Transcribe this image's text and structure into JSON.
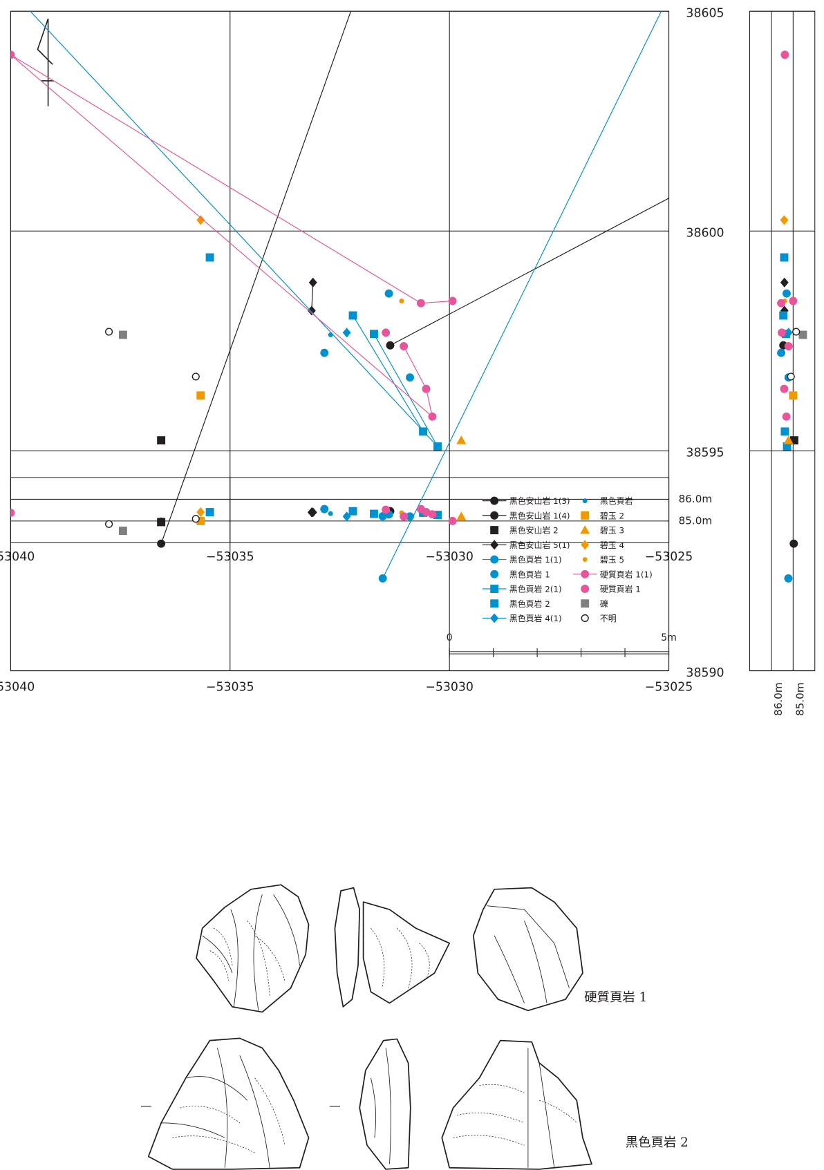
{
  "chart_data": {
    "type": "scatter",
    "grid": true,
    "legend": "lower right",
    "xlim": [
      -53040,
      -53025
    ],
    "xticks": [
      {
        "value": -53040,
        "label": "−53040"
      },
      {
        "value": -53035,
        "label": "−53035"
      },
      {
        "value": -53030,
        "label": "−53030"
      },
      {
        "value": -53025,
        "label": "−53025"
      }
    ],
    "ylim": [
      38590,
      38605
    ],
    "yticks": [
      38590,
      38595,
      38600,
      38605
    ],
    "zlim": [
      84,
      87
    ],
    "zticks": [
      {
        "value": 85,
        "label": "85.0m"
      },
      {
        "value": 86,
        "label": "86.0m"
      }
    ],
    "scale_bar": {
      "start_label": "0",
      "end_label": "5m"
    },
    "series": [
      {
        "name": "黒色安山岩 1(3)",
        "color": "#231f20",
        "marker": "circle",
        "line": true,
        "x": [
          -53036.57,
          -53031.89
        ],
        "values": [
          38592.89,
          38606
        ],
        "z": [
          84.97,
          null
        ]
      },
      {
        "name": "黒色安山岩 1(4)",
        "color": "#231f20",
        "marker": "circle",
        "line": true,
        "x": [
          -53031.35,
          -53024.5
        ],
        "values": [
          38597.4,
          38601.01
        ],
        "z": [
          85.45,
          null
        ]
      },
      {
        "name": "黒色安山岩 2",
        "color": "#231f20",
        "marker": "square",
        "line": false,
        "x": [
          -53036.57
        ],
        "values": [
          38595.24
        ],
        "z": [
          84.95
        ]
      },
      {
        "name": "黒色安山岩 5(1)",
        "color": "#231f20",
        "marker": "diamond",
        "line": true,
        "x": [
          -53033.11,
          -53033.14
        ],
        "values": [
          38598.83,
          38598.19
        ],
        "z": [
          85.4,
          85.4
        ]
      },
      {
        "name": "黒色頁岩 1(1)",
        "color": "#0091d0",
        "marker": "circle",
        "line": true,
        "x": [
          -53031.52,
          -53024.68
        ],
        "values": [
          38592.1,
          38606
        ],
        "z": [
          85.22,
          null
        ]
      },
      {
        "name": "黒色頁岩 1",
        "color": "#0091d0",
        "marker": "circle",
        "line": false,
        "x": [
          -53031.38,
          -53032.85,
          -53030.9
        ],
        "values": [
          38598.58,
          38597.23,
          38596.67
        ],
        "z": [
          85.3,
          85.55,
          85.21
        ]
      },
      {
        "name": "黒色頁岩 2(1)",
        "color": "#0091d0",
        "marker": "square",
        "line": true,
        "x": [
          -53032.2,
          -53030.6,
          null,
          -53031.72,
          -53030.27,
          -53040.49
        ],
        "values": [
          38598.08,
          38595.44,
          null,
          38597.66,
          38595.1,
          38606
        ],
        "z": [
          85.45,
          85.38,
          null,
          85.33,
          85.28,
          null
        ]
      },
      {
        "name": "黒色頁岩 2",
        "color": "#0091d0",
        "marker": "square",
        "line": false,
        "x": [
          -53035.46
        ],
        "values": [
          38599.4
        ],
        "z": [
          85.41
        ]
      },
      {
        "name": "黒色頁岩 4(1)",
        "color": "#0091d0",
        "marker": "diamond",
        "line": true,
        "x": [
          -53032.34
        ],
        "values": [
          38597.69
        ],
        "z": [
          85.21
        ]
      },
      {
        "name": "黒色頁岩",
        "color": "#0091d0",
        "marker": "dot",
        "line": false,
        "x": [
          -53032.71
        ],
        "values": [
          38597.64
        ],
        "z": [
          85.34
        ]
      },
      {
        "name": "碧玉 2",
        "color": "#f39800",
        "marker": "square",
        "line": false,
        "x": [
          -53035.67
        ],
        "values": [
          38596.26
        ],
        "z": [
          85.0
        ]
      },
      {
        "name": "碧玉 3",
        "color": "#f39800",
        "marker": "triangle",
        "line": false,
        "x": [
          -53029.73
        ],
        "values": [
          38595.24
        ],
        "z": [
          85.21
        ]
      },
      {
        "name": "碧玉 4",
        "color": "#f39800",
        "marker": "diamond",
        "line": false,
        "x": [
          -53035.67
        ],
        "values": [
          38600.25
        ],
        "z": [
          85.41
        ]
      },
      {
        "name": "碧玉 5",
        "color": "#f39800",
        "marker": "dot",
        "line": false,
        "x": [
          -53031.09
        ],
        "values": [
          38598.41
        ],
        "z": [
          85.38
        ]
      },
      {
        "name": "硬質頁岩 1(1)",
        "color": "#e9559a",
        "marker": "circle",
        "line": true,
        "x": [
          -53029.93,
          -53030.65,
          -53040.0,
          -53030.39,
          -53030.53,
          -53031.04
        ],
        "values": [
          38598.41,
          38598.36,
          38604.01,
          38595.78,
          38596.41,
          38597.38
        ],
        "z": [
          85.0,
          85.55,
          85.38,
          85.31,
          85.41,
          85.21
        ]
      },
      {
        "name": "硬質頁岩 1",
        "color": "#e9559a",
        "marker": "circle",
        "line": false,
        "x": [
          -53031.45
        ],
        "values": [
          38597.69
        ],
        "z": [
          85.52
        ]
      },
      {
        "name": "礫",
        "color": "#808080",
        "marker": "square",
        "line": false,
        "x": [
          -53037.44
        ],
        "values": [
          38597.64
        ],
        "z": [
          84.55
        ]
      },
      {
        "name": "不明",
        "color": "#231f20",
        "marker": "open-circle",
        "line": false,
        "x": [
          -53037.76,
          -53035.78
        ],
        "values": [
          38597.71,
          38596.69
        ],
        "z": [
          84.86,
          85.1
        ]
      }
    ]
  },
  "figures": [
    {
      "caption": "硬質頁岩 1"
    },
    {
      "caption": "黒色頁岩 2"
    }
  ]
}
